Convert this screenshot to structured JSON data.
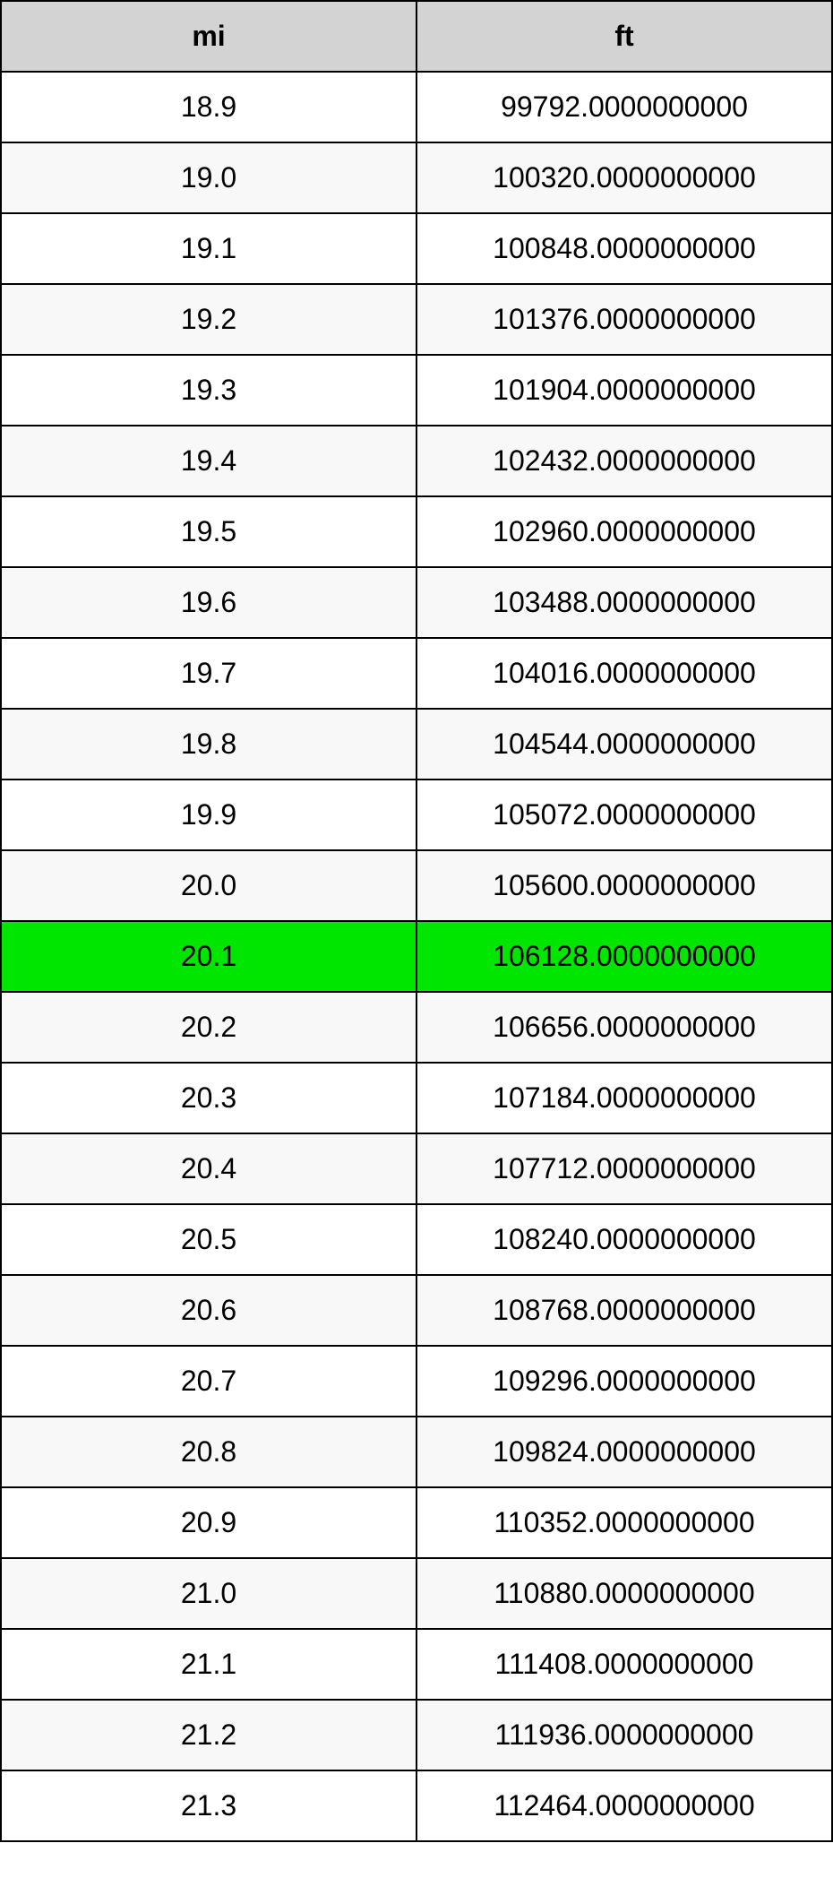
{
  "table": {
    "columns": [
      {
        "label": "mi"
      },
      {
        "label": "ft"
      }
    ],
    "header_bg": "#d3d3d3",
    "highlight_bg": "#00e600",
    "even_bg": "#ffffff",
    "odd_bg": "#f8f8f8",
    "border_color": "#000000",
    "font_size": 32,
    "rows": [
      {
        "mi": "18.9",
        "ft": "99792.0000000000",
        "stripe": "even",
        "highlighted": false
      },
      {
        "mi": "19.0",
        "ft": "100320.0000000000",
        "stripe": "odd",
        "highlighted": false
      },
      {
        "mi": "19.1",
        "ft": "100848.0000000000",
        "stripe": "even",
        "highlighted": false
      },
      {
        "mi": "19.2",
        "ft": "101376.0000000000",
        "stripe": "odd",
        "highlighted": false
      },
      {
        "mi": "19.3",
        "ft": "101904.0000000000",
        "stripe": "even",
        "highlighted": false
      },
      {
        "mi": "19.4",
        "ft": "102432.0000000000",
        "stripe": "odd",
        "highlighted": false
      },
      {
        "mi": "19.5",
        "ft": "102960.0000000000",
        "stripe": "even",
        "highlighted": false
      },
      {
        "mi": "19.6",
        "ft": "103488.0000000000",
        "stripe": "odd",
        "highlighted": false
      },
      {
        "mi": "19.7",
        "ft": "104016.0000000000",
        "stripe": "even",
        "highlighted": false
      },
      {
        "mi": "19.8",
        "ft": "104544.0000000000",
        "stripe": "odd",
        "highlighted": false
      },
      {
        "mi": "19.9",
        "ft": "105072.0000000000",
        "stripe": "even",
        "highlighted": false
      },
      {
        "mi": "20.0",
        "ft": "105600.0000000000",
        "stripe": "odd",
        "highlighted": false
      },
      {
        "mi": "20.1",
        "ft": "106128.0000000000",
        "stripe": "even",
        "highlighted": true
      },
      {
        "mi": "20.2",
        "ft": "106656.0000000000",
        "stripe": "odd",
        "highlighted": false
      },
      {
        "mi": "20.3",
        "ft": "107184.0000000000",
        "stripe": "even",
        "highlighted": false
      },
      {
        "mi": "20.4",
        "ft": "107712.0000000000",
        "stripe": "odd",
        "highlighted": false
      },
      {
        "mi": "20.5",
        "ft": "108240.0000000000",
        "stripe": "even",
        "highlighted": false
      },
      {
        "mi": "20.6",
        "ft": "108768.0000000000",
        "stripe": "odd",
        "highlighted": false
      },
      {
        "mi": "20.7",
        "ft": "109296.0000000000",
        "stripe": "even",
        "highlighted": false
      },
      {
        "mi": "20.8",
        "ft": "109824.0000000000",
        "stripe": "odd",
        "highlighted": false
      },
      {
        "mi": "20.9",
        "ft": "110352.0000000000",
        "stripe": "even",
        "highlighted": false
      },
      {
        "mi": "21.0",
        "ft": "110880.0000000000",
        "stripe": "odd",
        "highlighted": false
      },
      {
        "mi": "21.1",
        "ft": "111408.0000000000",
        "stripe": "even",
        "highlighted": false
      },
      {
        "mi": "21.2",
        "ft": "111936.0000000000",
        "stripe": "odd",
        "highlighted": false
      },
      {
        "mi": "21.3",
        "ft": "112464.0000000000",
        "stripe": "even",
        "highlighted": false
      }
    ]
  }
}
